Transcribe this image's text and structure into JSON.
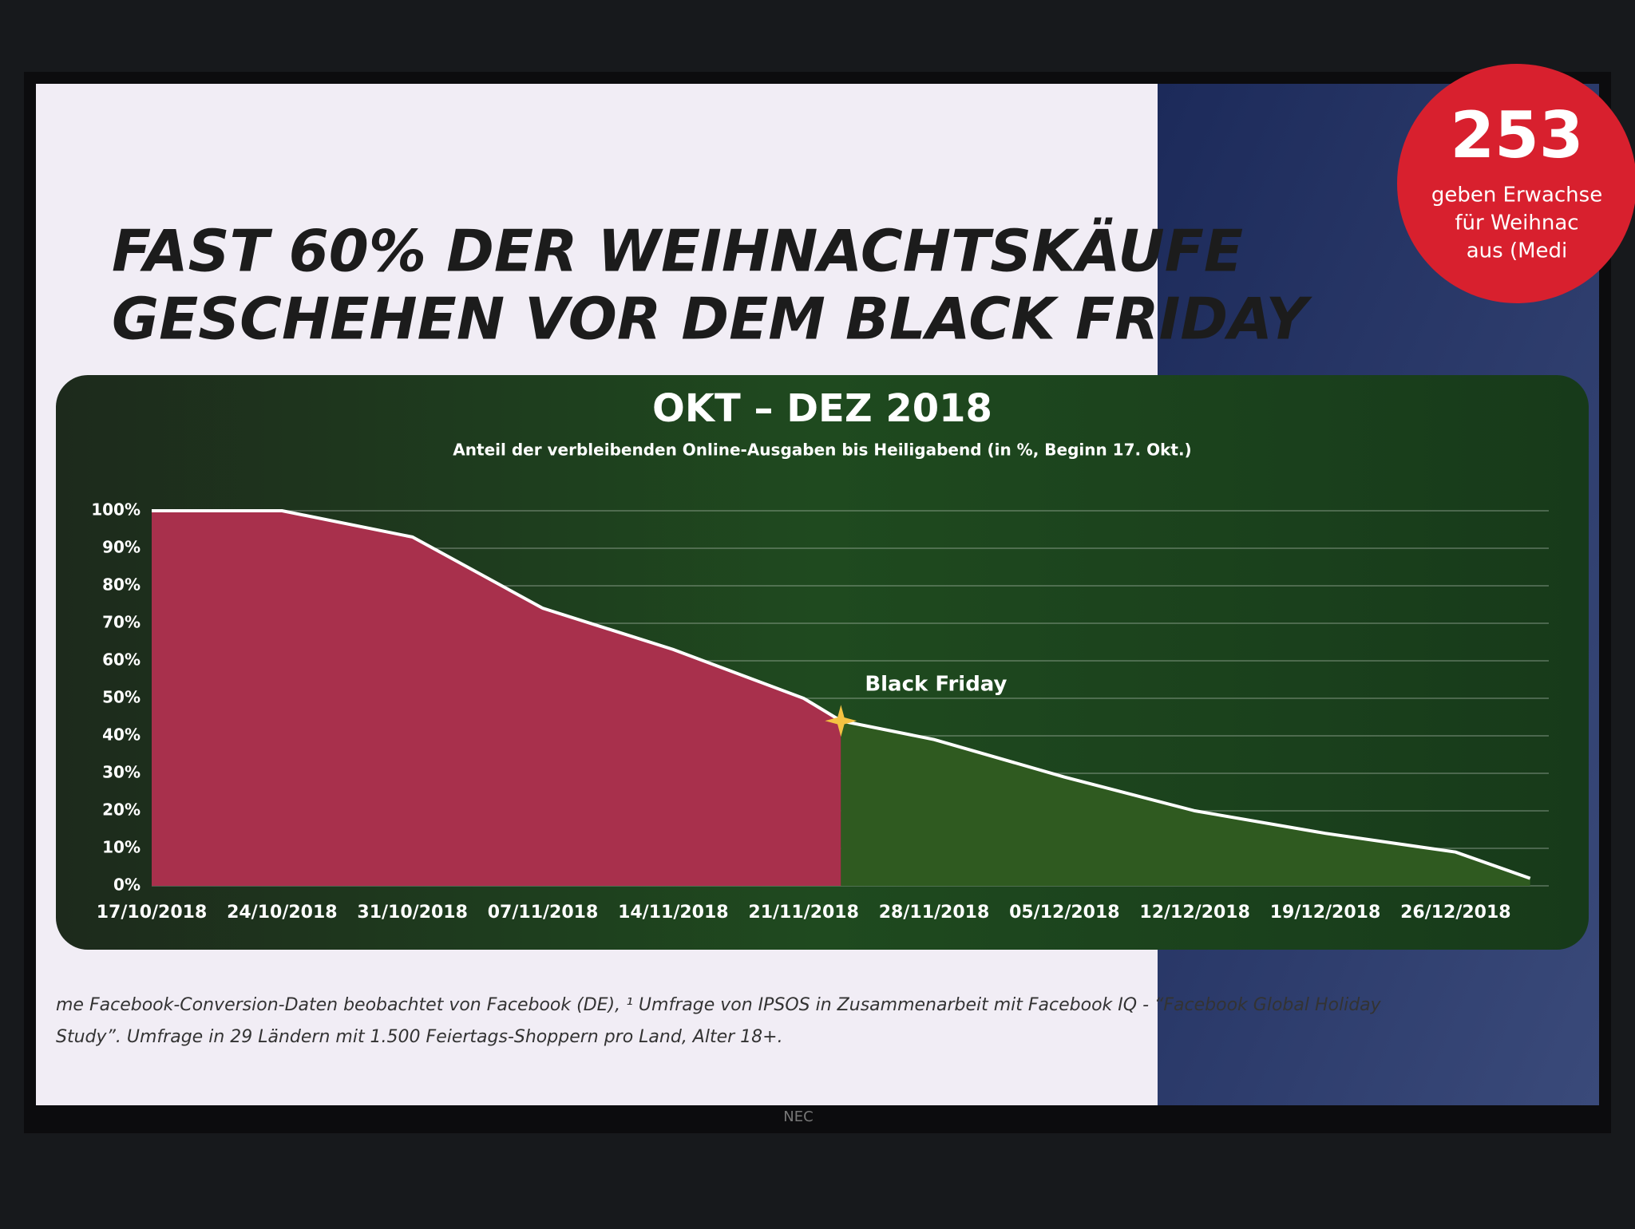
{
  "slide": {
    "title_lines": [
      "FAST 60% DER WEIHNACHTSKÄUFE",
      "GESCHEHEN VOR DEM BLACK FRIDAY"
    ],
    "badge": {
      "number": "253",
      "lines": [
        "geben Erwachse",
        "für Weihnac",
        "aus (Medi"
      ]
    },
    "footnote_lines": [
      "me Facebook-Conversion-Daten beobachtet von Facebook (DE), ¹ Umfrage von IPSOS in Zusammenarbeit mit Facebook IQ - “Facebook Global Holiday",
      "Study”. Umfrage in 29 Ländern mit 1.500 Feiertags-Shoppern pro Land, Alter 18+."
    ],
    "device_label": "NEC"
  },
  "chart_data": {
    "type": "area",
    "title": "OKT – DEZ 2018",
    "subtitle": "Anteil der verbleibenden Online-Ausgaben bis Heiligabend (in %, Beginn 17. Okt.)",
    "x": [
      "17/10/2018",
      "24/10/2018",
      "31/10/2018",
      "07/11/2018",
      "14/11/2018",
      "21/11/2018",
      "23/11/2018",
      "28/11/2018",
      "05/12/2018",
      "12/12/2018",
      "19/12/2018",
      "26/12/2018",
      "30/12/2018"
    ],
    "values": [
      100,
      100,
      93,
      74,
      63,
      50,
      44,
      39,
      29,
      20,
      14,
      9,
      2
    ],
    "line_color": "#ffffff",
    "fill_before": "#a8304c",
    "fill_after": "#2f5a20",
    "annotation": {
      "text": "Black Friday",
      "x": "23/11/2018"
    },
    "xlim": [
      "17/10/2018",
      "31/12/2018"
    ],
    "xticks": [
      "17/10/2018",
      "24/10/2018",
      "31/10/2018",
      "07/11/2018",
      "14/11/2018",
      "21/11/2018",
      "28/11/2018",
      "05/12/2018",
      "12/12/2018",
      "19/12/2018",
      "26/12/2018"
    ],
    "ylim": [
      0,
      100
    ],
    "yticks": [
      {
        "value": 0,
        "label": "0%"
      },
      {
        "value": 10,
        "label": "10%"
      },
      {
        "value": 20,
        "label": "20%"
      },
      {
        "value": 30,
        "label": "30%"
      },
      {
        "value": 40,
        "label": "40%"
      },
      {
        "value": 50,
        "label": "50%"
      },
      {
        "value": 60,
        "label": "60%"
      },
      {
        "value": 70,
        "label": "70%"
      },
      {
        "value": 80,
        "label": "80%"
      },
      {
        "value": 90,
        "label": "90%"
      },
      {
        "value": 100,
        "label": "100%"
      }
    ],
    "grid": true
  }
}
